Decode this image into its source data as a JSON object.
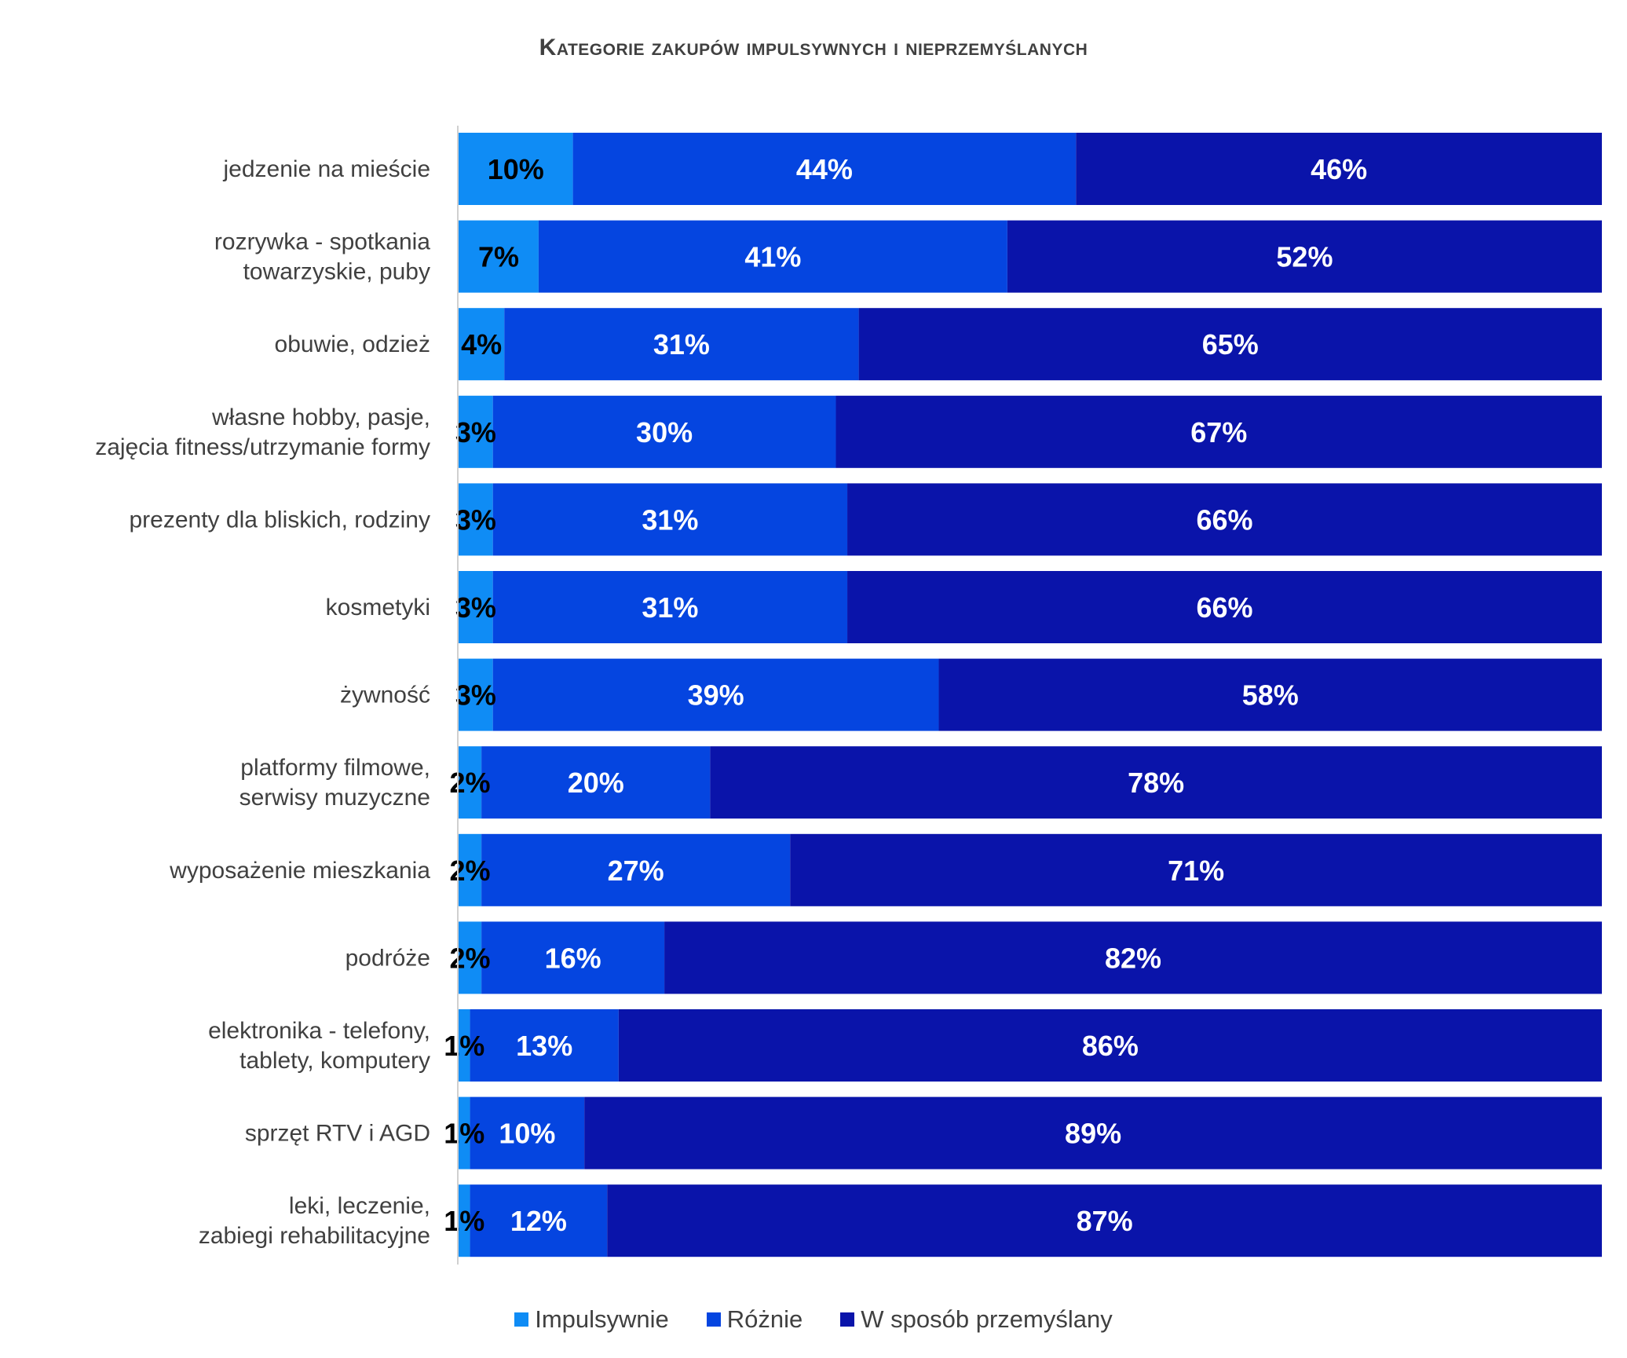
{
  "chart_data": {
    "type": "bar",
    "orientation": "horizontal",
    "stacked": true,
    "percent_stacked": true,
    "title": "Kategorie zakupów impulsywnych i nieprzemyślanych",
    "categories": [
      [
        "jedzenie na mieście"
      ],
      [
        "rozrywka - spotkania",
        "towarzyskie, puby"
      ],
      [
        "obuwie, odzież"
      ],
      [
        "własne hobby, pasje,",
        "zajęcia fitness/utrzymanie formy"
      ],
      [
        "prezenty dla bliskich, rodziny"
      ],
      [
        "kosmetyki"
      ],
      [
        "żywność"
      ],
      [
        "platformy filmowe,",
        "serwisy muzyczne"
      ],
      [
        "wyposażenie mieszkania"
      ],
      [
        "podróże"
      ],
      [
        "elektronika -  telefony,",
        "tablety, komputery"
      ],
      [
        "sprzęt RTV i AGD"
      ],
      [
        "leki, leczenie,",
        "zabiegi rehabilitacyjne"
      ]
    ],
    "series": [
      {
        "name": "Impulsywnie",
        "color": "#0F8CF5",
        "label_color": "#000000",
        "values": [
          10,
          7,
          4,
          3,
          3,
          3,
          3,
          2,
          2,
          2,
          1,
          1,
          1
        ]
      },
      {
        "name": "Różnie",
        "color": "#0545E0",
        "label_color": "#ffffff",
        "values": [
          44,
          41,
          31,
          30,
          31,
          31,
          39,
          20,
          27,
          16,
          13,
          10,
          12
        ]
      },
      {
        "name": "W sposób przemyślany",
        "color": "#0A14AA",
        "label_color": "#ffffff",
        "values": [
          46,
          52,
          65,
          67,
          66,
          66,
          58,
          78,
          71,
          82,
          86,
          89,
          87
        ]
      }
    ],
    "value_suffix": "%",
    "xlim": [
      0,
      100
    ],
    "grid": false,
    "legend_position": "bottom"
  }
}
